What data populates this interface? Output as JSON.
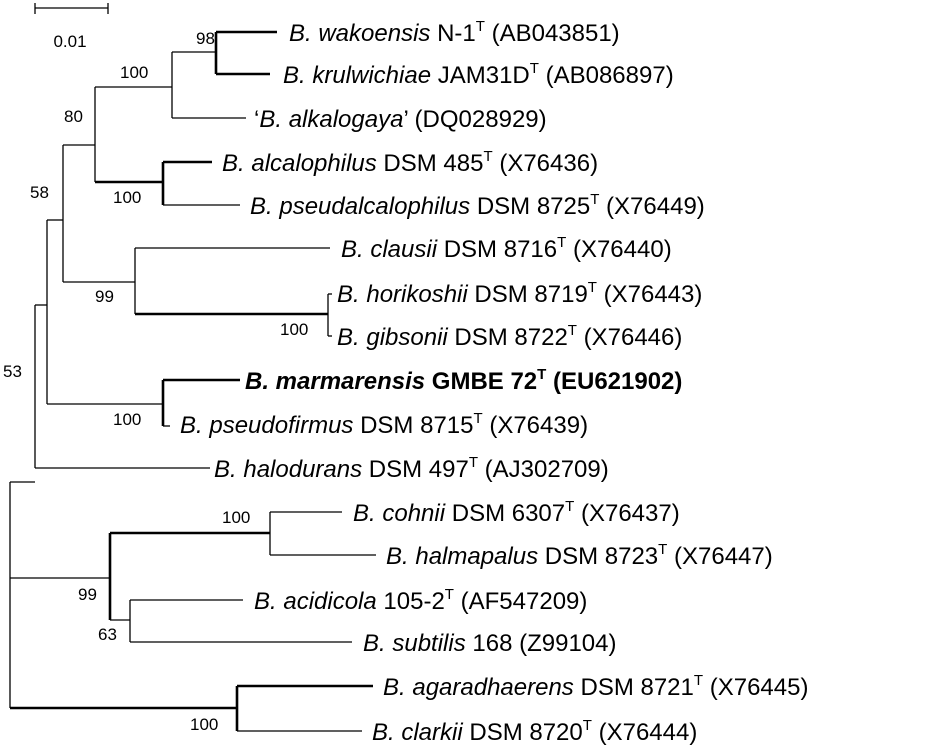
{
  "scale_bar": {
    "label": "0.01"
  },
  "taxa": [
    {
      "genus": "B. ",
      "species": "wakoensis",
      "strain": " N-1",
      "type": true,
      "accession": " (AB043851)"
    },
    {
      "genus": "B. ",
      "species": "krulwichiae",
      "strain": " JAM31D",
      "type": true,
      "accession": " (AB086897)"
    },
    {
      "prefix": "‘",
      "genus": "B. ",
      "species": "alkalogaya",
      "suffix": "’",
      "accession": " (DQ028929)"
    },
    {
      "genus": "B. ",
      "species": "alcalophilus",
      "strain": " DSM 485",
      "type": true,
      "accession": " (X76436)"
    },
    {
      "genus": "B. ",
      "species": "pseudalcalophilus",
      "strain": " DSM 8725",
      "type": true,
      "accession": " (X76449)"
    },
    {
      "genus": "B. ",
      "species": "clausii",
      "strain": " DSM 8716",
      "type": true,
      "accession": " (X76440)"
    },
    {
      "genus": "B. ",
      "species": "horikoshii",
      "strain": " DSM 8719",
      "type": true,
      "accession": " (X76443)"
    },
    {
      "genus": "B. ",
      "species": "gibsonii",
      "strain": " DSM 8722",
      "type": true,
      "accession": " (X76446)"
    },
    {
      "genus": "B. ",
      "species": "marmarensis",
      "strain": " GMBE 72",
      "type": true,
      "accession": " (EU621902)",
      "bold": true
    },
    {
      "genus": "B. ",
      "species": "pseudofirmus",
      "strain": " DSM 8715",
      "type": true,
      "accession": " (X76439)"
    },
    {
      "genus": "B. ",
      "species": "halodurans",
      "strain": " DSM 497",
      "type": true,
      "accession": " (AJ302709)"
    },
    {
      "genus": "B. ",
      "species": "cohnii",
      "strain": " DSM 6307",
      "type": true,
      "accession": " (X76437)"
    },
    {
      "genus": "B. ",
      "species": "halmapalus",
      "strain": " DSM 8723",
      "type": true,
      "accession": " (X76447)"
    },
    {
      "genus": "B. ",
      "species": "acidicola",
      "strain": " 105-2",
      "type": true,
      "accession": " (AF547209)"
    },
    {
      "genus": "B. ",
      "species": "subtilis",
      "strain": " 168",
      "type": false,
      "accession": " (Z99104)"
    },
    {
      "genus": "B. ",
      "species": "agaradhaerens",
      "strain": " DSM 8721",
      "type": true,
      "accession": " (X76445)"
    },
    {
      "genus": "B. ",
      "species": "clarkii",
      "strain": " DSM 8720",
      "type": true,
      "accession": " (X76444)"
    }
  ],
  "type_marker": "T",
  "bootstrap": [
    "98",
    "100",
    "80",
    "100",
    "58",
    "99",
    "100",
    "100",
    "53",
    "100",
    "99",
    "63",
    "100"
  ]
}
